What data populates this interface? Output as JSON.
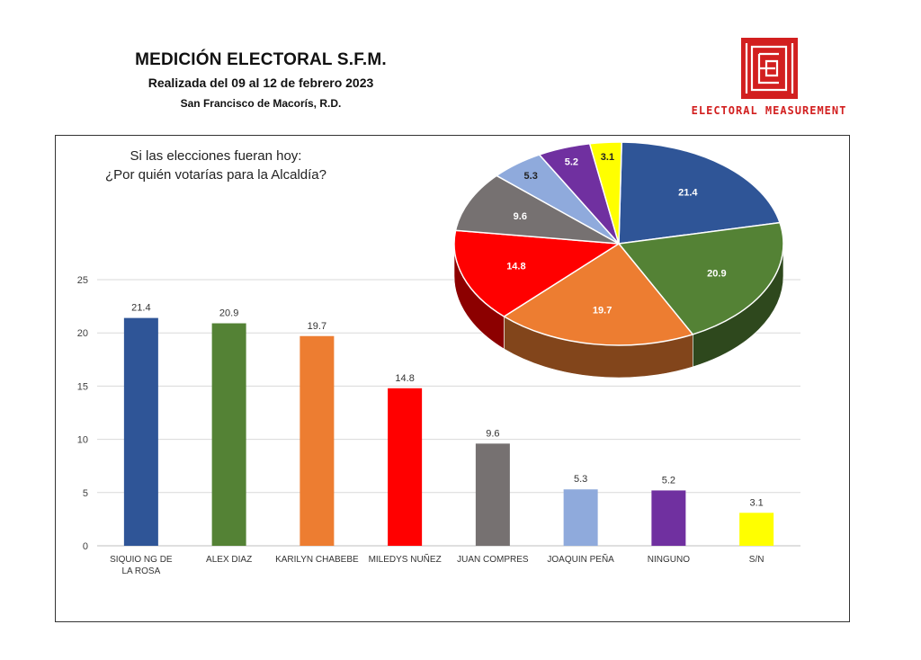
{
  "header": {
    "title": "MEDICIÓN ELECTORAL S.F.M.",
    "subtitle": "Realizada del 09 al 12 de febrero 2023",
    "location": "San Francisco de Macorís, R.D."
  },
  "logo": {
    "text": "ELECTORAL MEASUREMENT",
    "color": "#d21f1f"
  },
  "question": {
    "line1": "Si las elecciones fueran  hoy:",
    "line2": "¿Por quién votarías para la Alcaldía?"
  },
  "chart_data": [
    {
      "type": "bar",
      "categories": [
        "SIQUIO NG DE LA ROSA",
        "ALEX DIAZ",
        "KARILYN CHABEBE",
        "MILEDYS NUÑEZ",
        "JUAN COMPRES",
        "JOAQUIN PEÑA",
        "NINGUNO",
        "S/N"
      ],
      "values": [
        21.4,
        20.9,
        19.7,
        14.8,
        9.6,
        5.3,
        5.2,
        3.1
      ],
      "colors": [
        "#2f5597",
        "#548235",
        "#ed7d31",
        "#ff0000",
        "#767171",
        "#8faadc",
        "#7030a0",
        "#ffff00"
      ],
      "ylim": [
        0,
        25
      ],
      "yticks": [
        0,
        5,
        10,
        15,
        20,
        25
      ],
      "grid": true
    },
    {
      "type": "pie",
      "values": [
        21.4,
        20.9,
        19.7,
        14.8,
        9.6,
        5.3,
        5.2,
        3.1
      ],
      "colors": [
        "#2f5597",
        "#548235",
        "#ed7d31",
        "#ff0000",
        "#767171",
        "#8faadc",
        "#7030a0",
        "#ffff00"
      ]
    }
  ]
}
